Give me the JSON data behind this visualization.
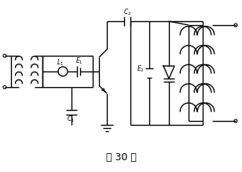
{
  "title": "题 30 图",
  "title_fontsize": 9,
  "bg_color": "#ffffff",
  "line_color": "#000000",
  "line_width": 1.0,
  "fig_width": 3.08,
  "fig_height": 2.19,
  "dpi": 100
}
